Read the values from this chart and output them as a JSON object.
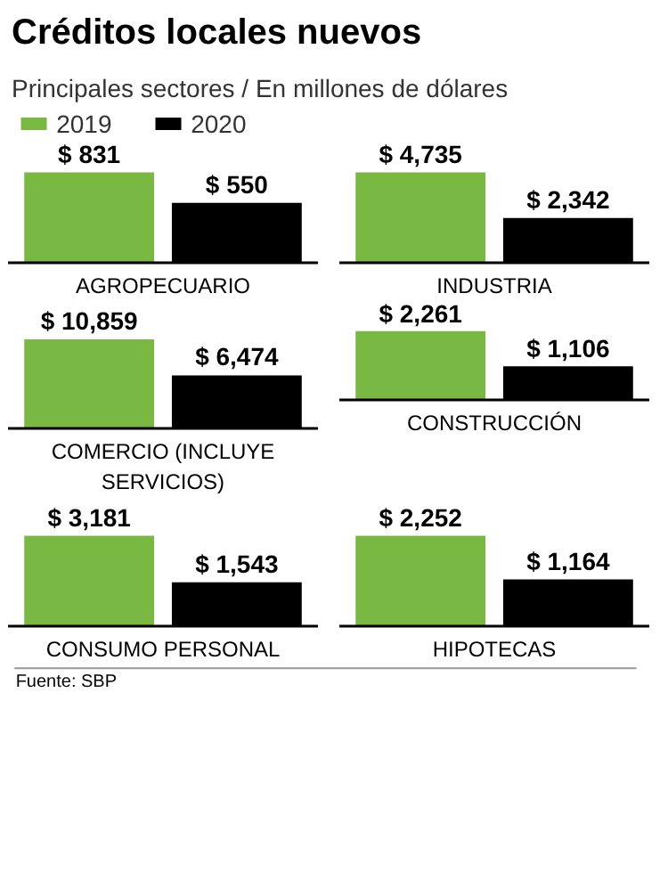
{
  "chart_data": [
    {
      "type": "other",
      "title": "Créditos locales nuevos",
      "subtitle": "Principales sectores / En millones de dólares",
      "categories": [
        "2019",
        "2020"
      ],
      "colors": [
        "#78b843",
        "#000000"
      ]
    },
    {
      "type": "bar",
      "xlabel": "AGROPECUARIO",
      "categories": [
        null,
        null
      ],
      "colors": [
        "#78b843",
        "#000000"
      ],
      "values": [
        831,
        550
      ],
      "value_labels": [
        "$ 831",
        "$ 550"
      ]
    },
    {
      "type": "bar",
      "xlabel": "INDUSTRIA",
      "categories": [
        null,
        null
      ],
      "colors": [
        "#78b843",
        "#000000"
      ],
      "values": [
        4735,
        2342
      ],
      "value_labels": [
        "$ 4,735",
        "$ 2,342"
      ]
    },
    {
      "type": "bar",
      "xlabel": "COMERCIO (INCLUYE SERVICIOS)",
      "categories": [
        null,
        null
      ],
      "colors": [
        "#78b843",
        "#000000"
      ],
      "values": [
        10859,
        6474
      ],
      "value_labels": [
        "$ 10,859",
        "$ 6,474"
      ]
    },
    {
      "type": "bar",
      "xlabel": "CONSTRUCCIÓN",
      "categories": [
        null,
        null
      ],
      "colors": [
        "#78b843",
        "#000000"
      ],
      "values": [
        2261,
        1106
      ],
      "value_labels": [
        "$ 2,261",
        "$ 1,106"
      ]
    },
    {
      "type": "bar",
      "xlabel": "CONSUMO PERSONAL",
      "categories": [
        null,
        null
      ],
      "colors": [
        "#78b843",
        "#000000"
      ],
      "values": [
        3181,
        1543
      ],
      "value_labels": [
        "$ 3,181",
        "$ 1,543"
      ]
    },
    {
      "type": "bar",
      "xlabel": "HIPOTECAS",
      "categories": [
        null,
        null
      ],
      "colors": [
        "#78b843",
        "#000000"
      ],
      "values": [
        2252,
        1164
      ],
      "value_labels": [
        "$ 2,252",
        "$ 1,164"
      ],
      "annotations": [
        "Fuente: SBP"
      ]
    }
  ]
}
